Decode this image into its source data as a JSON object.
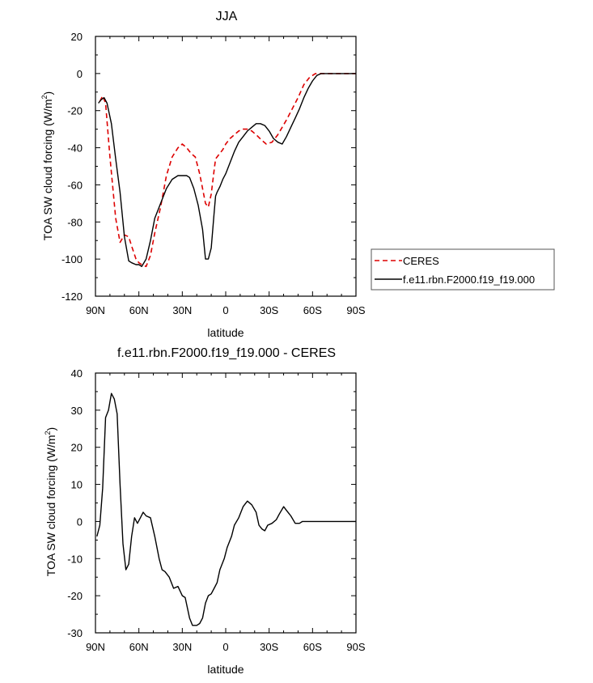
{
  "chart_data": [
    {
      "type": "line",
      "title": "JJA",
      "xlabel": "latitude",
      "ylabel": "TOA SW cloud forcing (W/m²)",
      "ylabel_main": "TOA SW cloud forcing (W/m",
      "ylabel_sup": "2",
      "ylabel_close": ")",
      "xlim": [
        90,
        -90
      ],
      "ylim": [
        -120,
        20
      ],
      "x_ticks": [
        90,
        60,
        30,
        0,
        -30,
        -60,
        -90
      ],
      "x_tick_labels": [
        "90N",
        "60N",
        "30N",
        "0",
        "30S",
        "60S",
        "90S"
      ],
      "y_ticks": [
        20,
        0,
        -20,
        -40,
        -60,
        -80,
        -100,
        -120
      ],
      "y_tick_labels": [
        "20",
        "0",
        "-20",
        "-40",
        "-60",
        "-80",
        "-100",
        "-120"
      ],
      "grid": false,
      "legend_position": "right",
      "series": [
        {
          "name": "CERES",
          "color": "#dd0000",
          "dash": "dashed",
          "x": [
            87,
            85,
            83,
            80,
            76,
            73,
            70,
            67,
            65,
            62,
            60,
            58,
            55,
            52,
            49,
            45,
            41,
            37,
            33,
            30,
            27,
            24,
            21,
            18,
            16,
            14,
            12,
            10,
            8,
            7,
            6,
            4,
            2,
            0,
            -3,
            -6,
            -9,
            -12,
            -15,
            -18,
            -21,
            -25,
            -28,
            -32,
            -36,
            -39,
            -42,
            -46,
            -50,
            -54,
            -58,
            -62,
            -66,
            -69,
            -72,
            -75,
            -78,
            -82,
            -86,
            -90
          ],
          "y": [
            -15,
            -12,
            -16,
            -45,
            -78,
            -91,
            -87,
            -88,
            -93,
            -100,
            -102,
            -103,
            -104,
            -98,
            -86,
            -72,
            -55,
            -45,
            -40,
            -38,
            -40,
            -43,
            -45,
            -54,
            -62,
            -70,
            -72,
            -65,
            -52,
            -46,
            -45,
            -43,
            -41,
            -38,
            -35,
            -33,
            -31,
            -30,
            -30,
            -31,
            -33,
            -36,
            -38,
            -37,
            -33,
            -29,
            -25,
            -19,
            -13,
            -6,
            -2,
            0,
            0,
            0,
            0,
            0,
            0,
            0,
            0,
            0
          ]
        },
        {
          "name": "f.e11.rbn.F2000.f19_f19.000",
          "color": "#000000",
          "dash": "solid",
          "x": [
            88,
            86,
            84,
            82,
            79,
            76,
            73,
            70,
            67,
            65,
            62,
            60,
            58,
            55,
            52,
            49,
            45,
            41,
            37,
            33,
            30,
            27,
            25,
            22,
            19,
            16,
            14,
            12,
            10,
            8,
            7,
            6,
            4,
            2,
            0,
            -3,
            -6,
            -9,
            -12,
            -15,
            -18,
            -21,
            -24,
            -27,
            -30,
            -33,
            -36,
            -39,
            -42,
            -45,
            -48,
            -51,
            -54,
            -57,
            -60,
            -63,
            -66,
            -69,
            -72,
            -76,
            -80,
            -85,
            -90
          ],
          "y": [
            -16,
            -14,
            -13,
            -16,
            -27,
            -46,
            -64,
            -88,
            -101,
            -102,
            -103,
            -103,
            -104,
            -100,
            -90,
            -78,
            -70,
            -62,
            -57,
            -55,
            -55,
            -55,
            -56,
            -62,
            -71,
            -84,
            -100,
            -100,
            -94,
            -75,
            -66,
            -64,
            -61,
            -57,
            -54,
            -48,
            -42,
            -37,
            -34,
            -31,
            -29,
            -27,
            -27,
            -28,
            -31,
            -35,
            -37,
            -38,
            -34,
            -29,
            -24,
            -19,
            -13,
            -8,
            -4,
            -1,
            0,
            0,
            0,
            0,
            0,
            0,
            0
          ]
        }
      ]
    },
    {
      "type": "line",
      "title": "f.e11.rbn.F2000.f19_f19.000 - CERES",
      "xlabel": "latitude",
      "ylabel": "TOA SW cloud forcing (W/m²)",
      "ylabel_main": "TOA SW cloud forcing (W/m",
      "ylabel_sup": "2",
      "ylabel_close": ")",
      "xlim": [
        90,
        -90
      ],
      "ylim": [
        -30,
        40
      ],
      "x_ticks": [
        90,
        60,
        30,
        0,
        -30,
        -60,
        -90
      ],
      "x_tick_labels": [
        "90N",
        "60N",
        "30N",
        "0",
        "30S",
        "60S",
        "90S"
      ],
      "y_ticks": [
        40,
        30,
        20,
        10,
        0,
        -10,
        -20,
        -30
      ],
      "y_tick_labels": [
        "40",
        "30",
        "20",
        "10",
        "0",
        "-10",
        "-20",
        "-30"
      ],
      "grid": false,
      "series": [
        {
          "color": "#000000",
          "dash": "solid",
          "x": [
            89,
            87,
            85,
            83,
            81,
            79,
            77,
            75,
            73,
            71,
            69,
            67,
            65,
            63,
            61,
            59,
            57,
            55,
            52,
            49,
            46,
            44,
            42,
            39,
            36,
            33,
            30,
            28,
            25,
            23,
            20,
            18,
            16,
            14,
            12,
            10,
            8,
            6,
            4,
            1,
            -1,
            -4,
            -6,
            -9,
            -12,
            -15,
            -18,
            -21,
            -23,
            -25,
            -27,
            -29,
            -32,
            -35,
            -37,
            -40,
            -42,
            -45,
            -48,
            -51,
            -53,
            -55,
            -58,
            -60,
            -63,
            -66,
            -69,
            -72,
            -75,
            -78,
            -82,
            -86,
            -90
          ],
          "y": [
            -4,
            -1,
            9,
            28,
            30,
            34.5,
            33,
            29,
            10,
            -6,
            -13,
            -11.5,
            -4,
            1,
            -0.5,
            1,
            2.5,
            1.5,
            1,
            -4,
            -10,
            -13,
            -13.5,
            -15,
            -18,
            -17.5,
            -20,
            -20.5,
            -26,
            -28,
            -28,
            -27.5,
            -26,
            -22,
            -20,
            -19.5,
            -18,
            -16.5,
            -13,
            -10,
            -7,
            -4,
            -1,
            1,
            4,
            5.5,
            4.5,
            2.5,
            -1,
            -2,
            -2.5,
            -1,
            -0.5,
            0.5,
            2,
            4,
            3,
            1.5,
            -0.5,
            -0.5,
            0,
            0,
            0,
            0,
            0,
            0,
            0,
            0,
            0,
            0,
            0,
            0,
            0
          ]
        }
      ]
    }
  ]
}
